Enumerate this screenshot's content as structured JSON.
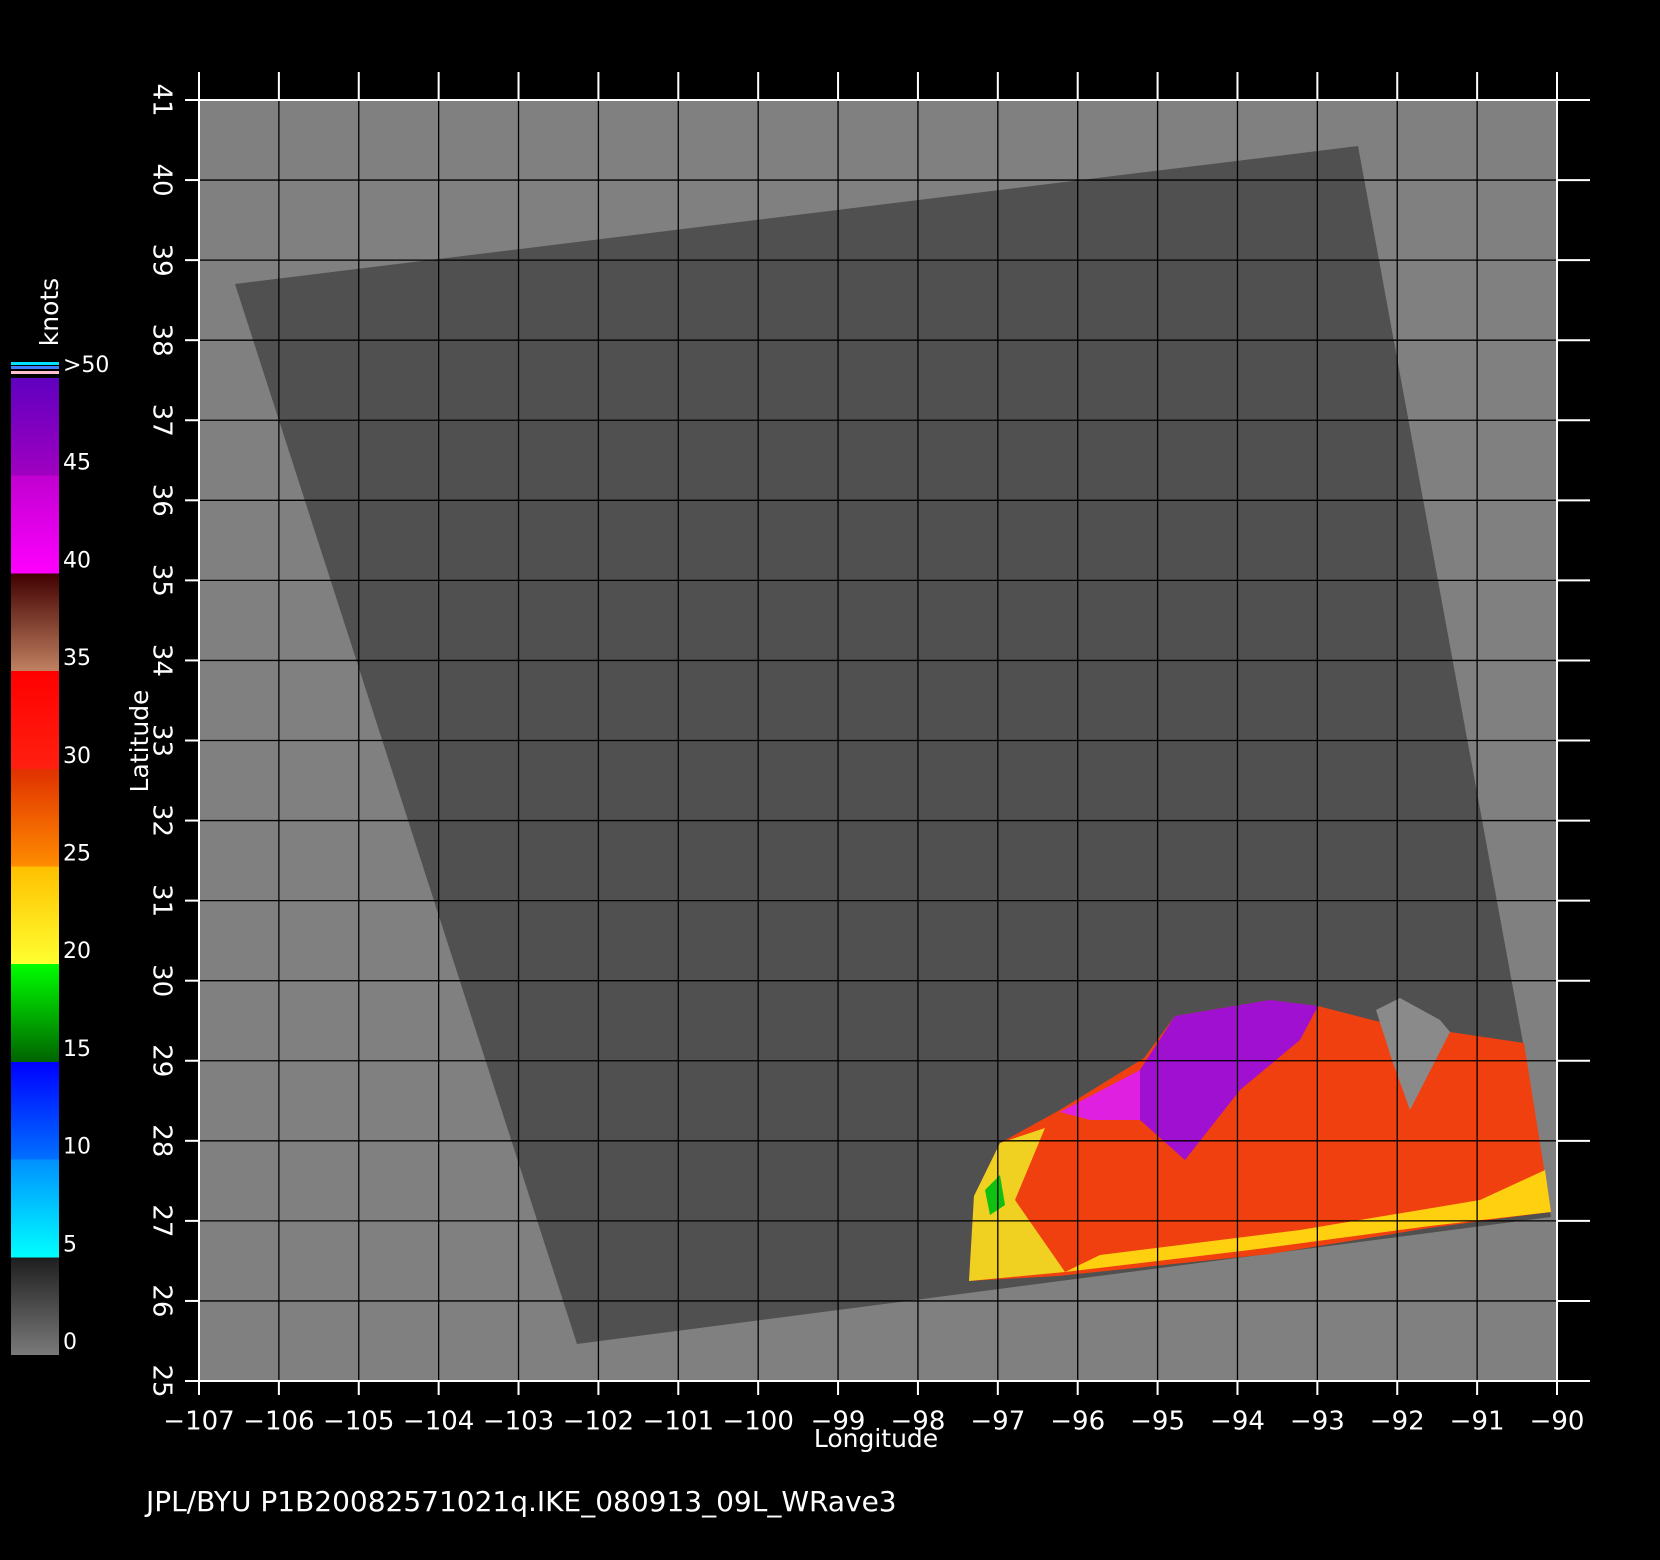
{
  "chart_data": {
    "type": "heatmap",
    "title": "JPL/BYU  P1B20082571021q.IKE_080913_09L_WRave3",
    "x_label": "Longitude",
    "y_label": "Latitude",
    "xlim": [
      -107,
      -90
    ],
    "ylim": [
      25,
      41
    ],
    "xticks": [
      {
        "value": -107,
        "label": "−107"
      },
      {
        "value": -106,
        "label": "−106"
      },
      {
        "value": -105,
        "label": "−105"
      },
      {
        "value": -104,
        "label": "−104"
      },
      {
        "value": -103,
        "label": "−103"
      },
      {
        "value": -102,
        "label": "−102"
      },
      {
        "value": -101,
        "label": "−101"
      },
      {
        "value": -100,
        "label": "−100"
      },
      {
        "value": -99,
        "label": "−99"
      },
      {
        "value": -98,
        "label": "−98"
      },
      {
        "value": -97,
        "label": "−97"
      },
      {
        "value": -96,
        "label": "−96"
      },
      {
        "value": -95,
        "label": "−95"
      },
      {
        "value": -94,
        "label": "−94"
      },
      {
        "value": -93,
        "label": "−93"
      },
      {
        "value": -92,
        "label": "−92"
      },
      {
        "value": -91,
        "label": "−91"
      },
      {
        "value": -90,
        "label": "−90"
      }
    ],
    "yticks": [
      25,
      26,
      27,
      28,
      29,
      30,
      31,
      32,
      33,
      34,
      35,
      36,
      37,
      38,
      39,
      40,
      41
    ],
    "grid": true,
    "colorbar": {
      "label": "knots",
      "range": [
        0,
        50
      ],
      "ticks": [
        0,
        5,
        10,
        15,
        20,
        25,
        30,
        35,
        40,
        45,
        {
          "value": 50,
          "label": ">50"
        }
      ],
      "stops": [
        {
          "value": 0,
          "color": "#7a7a7a"
        },
        {
          "value": 5,
          "color": "#1e1e1e"
        },
        {
          "value": 5,
          "color": "#00ffff"
        },
        {
          "value": 10,
          "color": "#0090ff"
        },
        {
          "value": 10,
          "color": "#0070ff"
        },
        {
          "value": 15,
          "color": "#0000ff"
        },
        {
          "value": 15,
          "color": "#006400"
        },
        {
          "value": 20,
          "color": "#00ff00"
        },
        {
          "value": 20,
          "color": "#ffff30"
        },
        {
          "value": 25,
          "color": "#ffc000"
        },
        {
          "value": 25,
          "color": "#ff8c00"
        },
        {
          "value": 30,
          "color": "#e03000"
        },
        {
          "value": 30,
          "color": "#ff2010"
        },
        {
          "value": 35,
          "color": "#ff0000"
        },
        {
          "value": 35,
          "color": "#c08060"
        },
        {
          "value": 40,
          "color": "#400000"
        },
        {
          "value": 40,
          "color": "#ff00ff"
        },
        {
          "value": 45,
          "color": "#c000d0"
        },
        {
          "value": 45,
          "color": "#a000c0"
        },
        {
          "value": 50,
          "color": "#6000c0"
        }
      ]
    }
  }
}
